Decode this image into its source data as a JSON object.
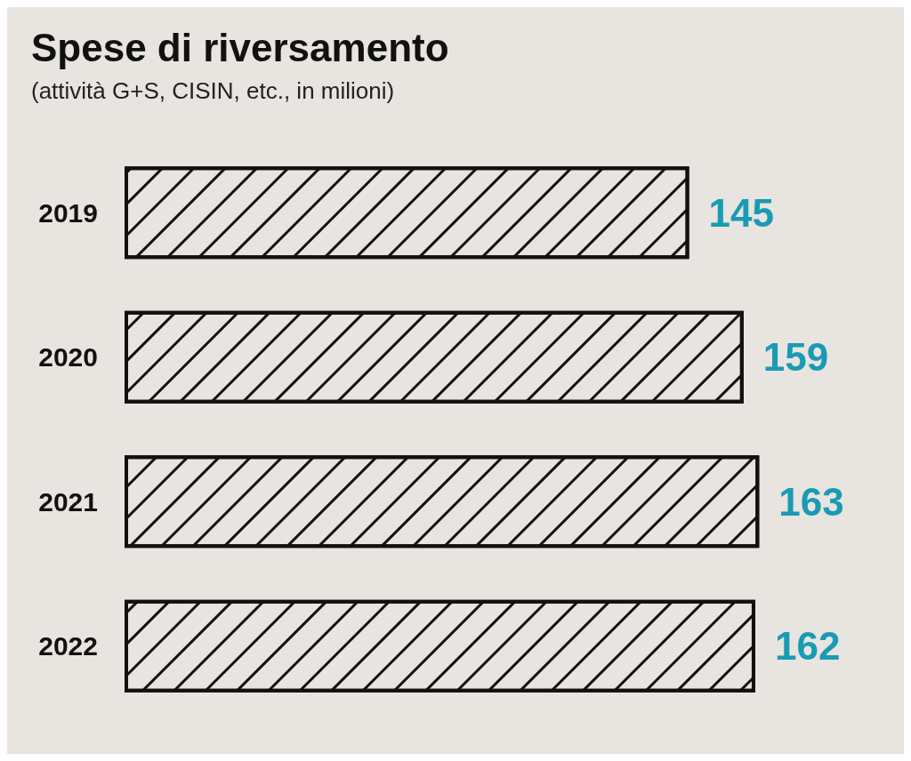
{
  "chart_data": {
    "type": "bar",
    "orientation": "horizontal",
    "title": "Spese di riversamento",
    "subtitle": "(attività G+S, CISIN, etc., in milioni)",
    "categories": [
      "2019",
      "2020",
      "2021",
      "2022"
    ],
    "values": [
      145,
      159,
      163,
      162
    ],
    "color": "#111111",
    "data_labels": true
  }
}
